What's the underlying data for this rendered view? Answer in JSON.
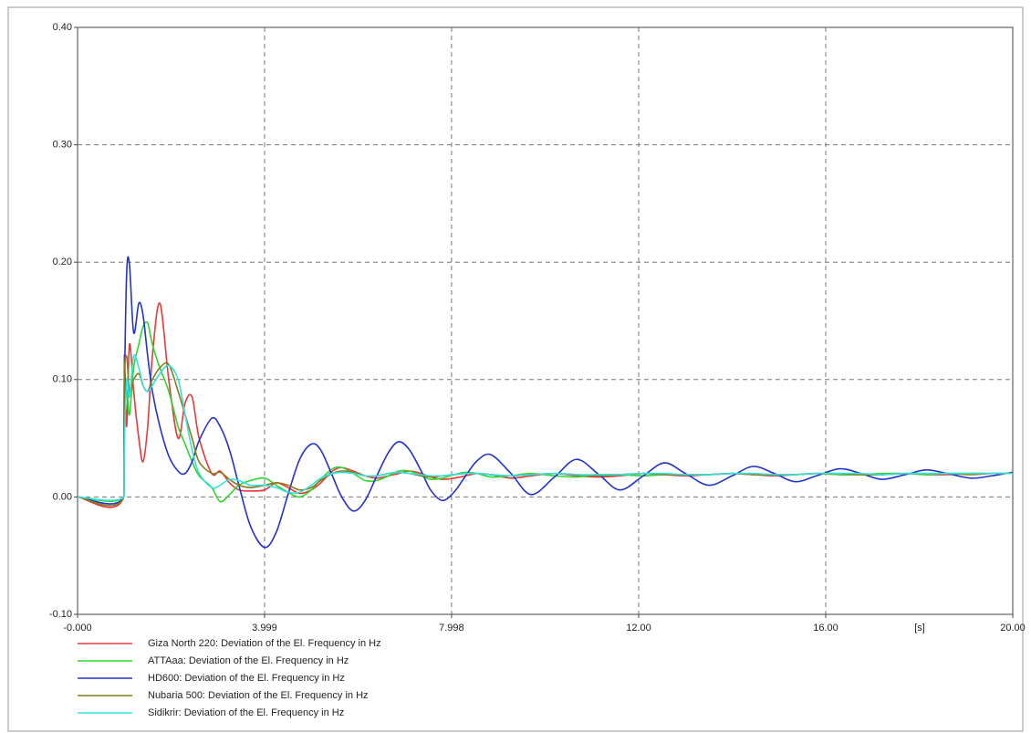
{
  "chart_data": {
    "type": "line",
    "x": [
      0,
      0.99,
      1.0,
      1.05,
      1.11,
      1.2,
      1.31,
      1.4,
      1.5,
      1.6,
      1.76,
      1.95,
      2.15,
      2.3,
      2.45,
      2.6,
      2.87,
      3.05,
      3.25,
      3.45,
      3.7,
      4.0,
      4.25,
      4.5,
      4.75,
      5.0,
      5.2,
      5.45,
      5.65,
      5.9,
      6.15,
      6.4,
      6.65,
      6.87,
      7.1,
      7.35,
      7.55,
      7.8,
      8.05,
      8.3,
      8.55,
      8.84,
      9.27,
      9.7,
      10.2,
      10.67,
      11.15,
      11.6,
      12.1,
      12.55,
      13.0,
      13.5,
      14.0,
      14.45,
      14.9,
      15.35,
      15.8,
      16.3,
      16.75,
      17.2,
      17.7,
      18.15,
      18.6,
      19.1,
      19.55,
      20.0
    ],
    "series": [
      {
        "name": "Giza North 220: Deviation of the El. Frequency in Hz",
        "color": "#e8383b",
        "values": [
          0,
          0,
          0.12,
          0.06,
          0.13,
          0.09,
          0.05,
          0.03,
          0.06,
          0.12,
          0.165,
          0.1,
          0.05,
          0.08,
          0.085,
          0.05,
          0.02,
          0.022,
          0.012,
          0.006,
          0.005,
          0.006,
          0.012,
          0.008,
          0.003,
          0.006,
          0.012,
          0.022,
          0.025,
          0.022,
          0.018,
          0.016,
          0.018,
          0.02,
          0.022,
          0.02,
          0.017,
          0.015,
          0.016,
          0.018,
          0.02,
          0.019,
          0.016,
          0.018,
          0.02,
          0.018,
          0.017,
          0.018,
          0.02,
          0.019,
          0.018,
          0.019,
          0.02,
          0.019,
          0.018,
          0.019,
          0.02,
          0.019,
          0.019,
          0.019,
          0.02,
          0.019,
          0.019,
          0.02,
          0.02,
          0.02
        ]
      },
      {
        "name": "ATTAaa: Deviation of the El. Frequency in Hz",
        "color": "#2fd62f",
        "values": [
          0,
          0,
          0.05,
          0.09,
          0.07,
          0.11,
          0.13,
          0.145,
          0.148,
          0.13,
          0.11,
          0.09,
          0.06,
          0.045,
          0.03,
          0.018,
          0.008,
          -0.004,
          0.002,
          0.01,
          0.014,
          0.016,
          0.01,
          0.004,
          0,
          0.006,
          0.015,
          0.024,
          0.025,
          0.02,
          0.014,
          0.014,
          0.018,
          0.022,
          0.022,
          0.018,
          0.015,
          0.016,
          0.019,
          0.021,
          0.02,
          0.017,
          0.018,
          0.02,
          0.018,
          0.017,
          0.019,
          0.019,
          0.018,
          0.019,
          0.019,
          0.019,
          0.02,
          0.019,
          0.019,
          0.019,
          0.02,
          0.019,
          0.019,
          0.02,
          0.02,
          0.019,
          0.02,
          0.02,
          0.02,
          0.02
        ]
      },
      {
        "name": "HD600: Deviation of the El. Frequency in Hz",
        "color": "#2233cc",
        "values": [
          0,
          0,
          0.08,
          0.19,
          0.198,
          0.14,
          0.165,
          0.155,
          0.12,
          0.09,
          0.06,
          0.035,
          0.022,
          0.02,
          0.03,
          0.048,
          0.067,
          0.06,
          0.04,
          0.01,
          -0.025,
          -0.043,
          -0.03,
          0.002,
          0.032,
          0.045,
          0.04,
          0.018,
          0.0,
          -0.012,
          -0.003,
          0.018,
          0.038,
          0.047,
          0.04,
          0.022,
          0.006,
          -0.003,
          0.004,
          0.018,
          0.031,
          0.036,
          0.02,
          0.002,
          0.017,
          0.032,
          0.019,
          0.006,
          0.018,
          0.029,
          0.02,
          0.01,
          0.018,
          0.026,
          0.02,
          0.013,
          0.018,
          0.024,
          0.02,
          0.015,
          0.019,
          0.023,
          0.02,
          0.016,
          0.018,
          0.021
        ]
      },
      {
        "name": "Nubaria 500: Deviation of the El. Frequency in Hz",
        "color": "#8a7a1a",
        "values": [
          0,
          0,
          0.1,
          0.12,
          0.09,
          0.1,
          0.105,
          0.095,
          0.09,
          0.1,
          0.11,
          0.113,
          0.09,
          0.07,
          0.05,
          0.03,
          0.02,
          0.021,
          0.015,
          0.01,
          0.008,
          0.01,
          0.012,
          0.01,
          0.006,
          0.008,
          0.014,
          0.02,
          0.022,
          0.021,
          0.018,
          0.018,
          0.02,
          0.021,
          0.02,
          0.018,
          0.017,
          0.018,
          0.019,
          0.02,
          0.02,
          0.019,
          0.018,
          0.019,
          0.02,
          0.019,
          0.018,
          0.019,
          0.02,
          0.019,
          0.019,
          0.019,
          0.02,
          0.019,
          0.019,
          0.019,
          0.02,
          0.02,
          0.019,
          0.019,
          0.02,
          0.02,
          0.02,
          0.019,
          0.02,
          0.02
        ]
      },
      {
        "name": "Sidikrir: Deviation of the El. Frequency in Hz",
        "color": "#33e0e0",
        "values": [
          0,
          0,
          0.04,
          0.1,
          0.085,
          0.12,
          0.11,
          0.095,
          0.09,
          0.095,
          0.105,
          0.112,
          0.1,
          0.07,
          0.04,
          0.02,
          0.008,
          0.01,
          0.015,
          0.014,
          0.01,
          0.01,
          0.008,
          0.004,
          0.004,
          0.01,
          0.016,
          0.02,
          0.021,
          0.02,
          0.018,
          0.018,
          0.02,
          0.021,
          0.02,
          0.019,
          0.018,
          0.018,
          0.019,
          0.02,
          0.02,
          0.019,
          0.018,
          0.019,
          0.02,
          0.019,
          0.019,
          0.019,
          0.02,
          0.02,
          0.019,
          0.019,
          0.02,
          0.02,
          0.019,
          0.019,
          0.02,
          0.02,
          0.02,
          0.019,
          0.02,
          0.02,
          0.02,
          0.02,
          0.02,
          0.02
        ]
      }
    ],
    "x_label": "[s]",
    "xlim": [
      0,
      20
    ],
    "xticks": [
      {
        "value": 0,
        "label": "-0.000"
      },
      3.999,
      7.998,
      {
        "value": 12,
        "label": "12.00"
      },
      {
        "value": 16,
        "label": "16.00"
      },
      {
        "value": 20,
        "label": "20.00"
      }
    ],
    "ylim": [
      -0.1,
      0.4
    ],
    "yticks": [
      {
        "value": -0.1,
        "label": "-0.10"
      },
      {
        "value": 0,
        "label": "0.00"
      },
      {
        "value": 0.1,
        "label": "0.10"
      },
      {
        "value": 0.2,
        "label": "0.20"
      },
      {
        "value": 0.3,
        "label": "0.30"
      },
      {
        "value": 0.4,
        "label": "0.40"
      }
    ],
    "grid": true
  }
}
